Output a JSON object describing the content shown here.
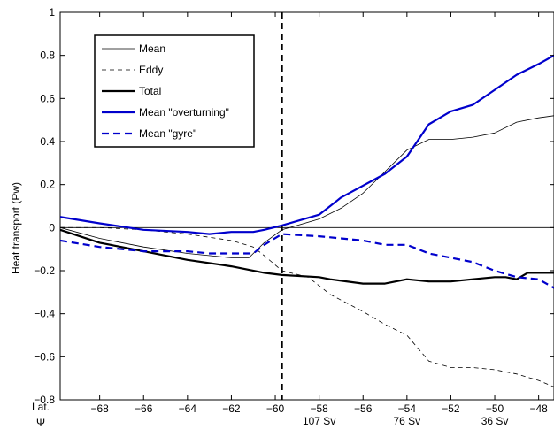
{
  "chart_data": {
    "type": "line",
    "title": "",
    "xlabel": "",
    "ylabel": "Heat transport (Pw)",
    "xlim": [
      -69.8,
      -47.3
    ],
    "ylim": [
      -0.8,
      1.0
    ],
    "grid": false,
    "legend_position": "top-left",
    "x_ticks": [
      -68,
      -66,
      -64,
      -62,
      -60,
      -58,
      -56,
      -54,
      -52,
      -50,
      -48
    ],
    "y_ticks": [
      -0.8,
      -0.6,
      -0.4,
      -0.2,
      0,
      0.2,
      0.4,
      0.6,
      0.8,
      1
    ],
    "y_tick_labels": [
      "−0.8",
      "−0.6",
      "−0.4",
      "−0.2",
      "0",
      "0.2",
      "0.4",
      "0.6",
      "0.8",
      "1"
    ],
    "x_tick_labels": [
      "−68",
      "−66",
      "−64",
      "−62",
      "−60",
      "−58",
      "−56",
      "−54",
      "−52",
      "−50",
      "−48"
    ],
    "row_labels": [
      "Lat.",
      "Ψ"
    ],
    "psi_labels": [
      {
        "x": -58,
        "label": "107 Sv"
      },
      {
        "x": -54,
        "label": "76 Sv"
      },
      {
        "x": -50,
        "label": "36 Sv"
      }
    ],
    "vertical_reference_x": -59.7,
    "horizontal_reference_y": 0,
    "series": [
      {
        "name": "Mean",
        "color": "#000000",
        "width": 0.8,
        "dash": "",
        "x": [
          -69.8,
          -68,
          -66,
          -64,
          -62,
          -61.2,
          -60.5,
          -59.7,
          -59,
          -58,
          -57,
          -56,
          -55,
          -54,
          -53,
          -52,
          -51,
          -50,
          -49,
          -48,
          -47.3
        ],
        "y": [
          0.0,
          -0.05,
          -0.09,
          -0.12,
          -0.14,
          -0.14,
          -0.07,
          -0.01,
          0.01,
          0.04,
          0.09,
          0.16,
          0.26,
          0.36,
          0.41,
          0.41,
          0.42,
          0.44,
          0.49,
          0.51,
          0.52
        ]
      },
      {
        "name": "Eddy",
        "color": "#000000",
        "width": 0.8,
        "dash": "5,4",
        "x": [
          -69.8,
          -68,
          -66,
          -64,
          -62,
          -61,
          -60.5,
          -59.7,
          -58.5,
          -57.5,
          -56,
          -55,
          -54,
          -53,
          -52,
          -51,
          -50,
          -49,
          -48,
          -47.3
        ],
        "y": [
          0.0,
          0.0,
          -0.01,
          -0.03,
          -0.06,
          -0.09,
          -0.13,
          -0.2,
          -0.23,
          -0.31,
          -0.39,
          -0.45,
          -0.5,
          -0.62,
          -0.65,
          -0.65,
          -0.66,
          -0.68,
          -0.71,
          -0.74
        ]
      },
      {
        "name": "Total",
        "color": "#000000",
        "width": 2.2,
        "dash": "",
        "x": [
          -69.8,
          -68,
          -66,
          -64,
          -62,
          -60.5,
          -59.7,
          -58,
          -57.5,
          -56,
          -55,
          -54,
          -53,
          -52,
          -51,
          -50,
          -49.5,
          -49,
          -48.5,
          -47.3
        ],
        "y": [
          -0.01,
          -0.07,
          -0.11,
          -0.15,
          -0.18,
          -0.21,
          -0.22,
          -0.23,
          -0.24,
          -0.26,
          -0.26,
          -0.24,
          -0.25,
          -0.25,
          -0.24,
          -0.23,
          -0.23,
          -0.24,
          -0.21,
          -0.21
        ]
      },
      {
        "name": "Mean \"overturning\"",
        "color": "#0000cc",
        "width": 2.2,
        "dash": "",
        "x": [
          -69.8,
          -68,
          -66,
          -64,
          -63,
          -62,
          -61,
          -60.5,
          -59.7,
          -58,
          -57,
          -55,
          -54,
          -53,
          -52,
          -51,
          -50,
          -49,
          -48,
          -47.3
        ],
        "y": [
          0.05,
          0.02,
          -0.01,
          -0.02,
          -0.03,
          -0.02,
          -0.02,
          -0.01,
          0.01,
          0.06,
          0.14,
          0.25,
          0.33,
          0.48,
          0.54,
          0.57,
          0.64,
          0.71,
          0.76,
          0.8
        ]
      },
      {
        "name": "Mean \"gyre\"",
        "color": "#0000cc",
        "width": 2.2,
        "dash": "8,5",
        "x": [
          -69.8,
          -68,
          -66,
          -64,
          -63,
          -62,
          -61,
          -60.5,
          -59.7,
          -58,
          -57,
          -56,
          -55,
          -54,
          -53,
          -52,
          -51,
          -50,
          -49,
          -48,
          -47.3
        ],
        "y": [
          -0.06,
          -0.09,
          -0.11,
          -0.11,
          -0.12,
          -0.12,
          -0.12,
          -0.08,
          -0.03,
          -0.04,
          -0.05,
          -0.06,
          -0.08,
          -0.08,
          -0.12,
          -0.14,
          -0.16,
          -0.2,
          -0.23,
          -0.24,
          -0.28
        ]
      }
    ]
  }
}
